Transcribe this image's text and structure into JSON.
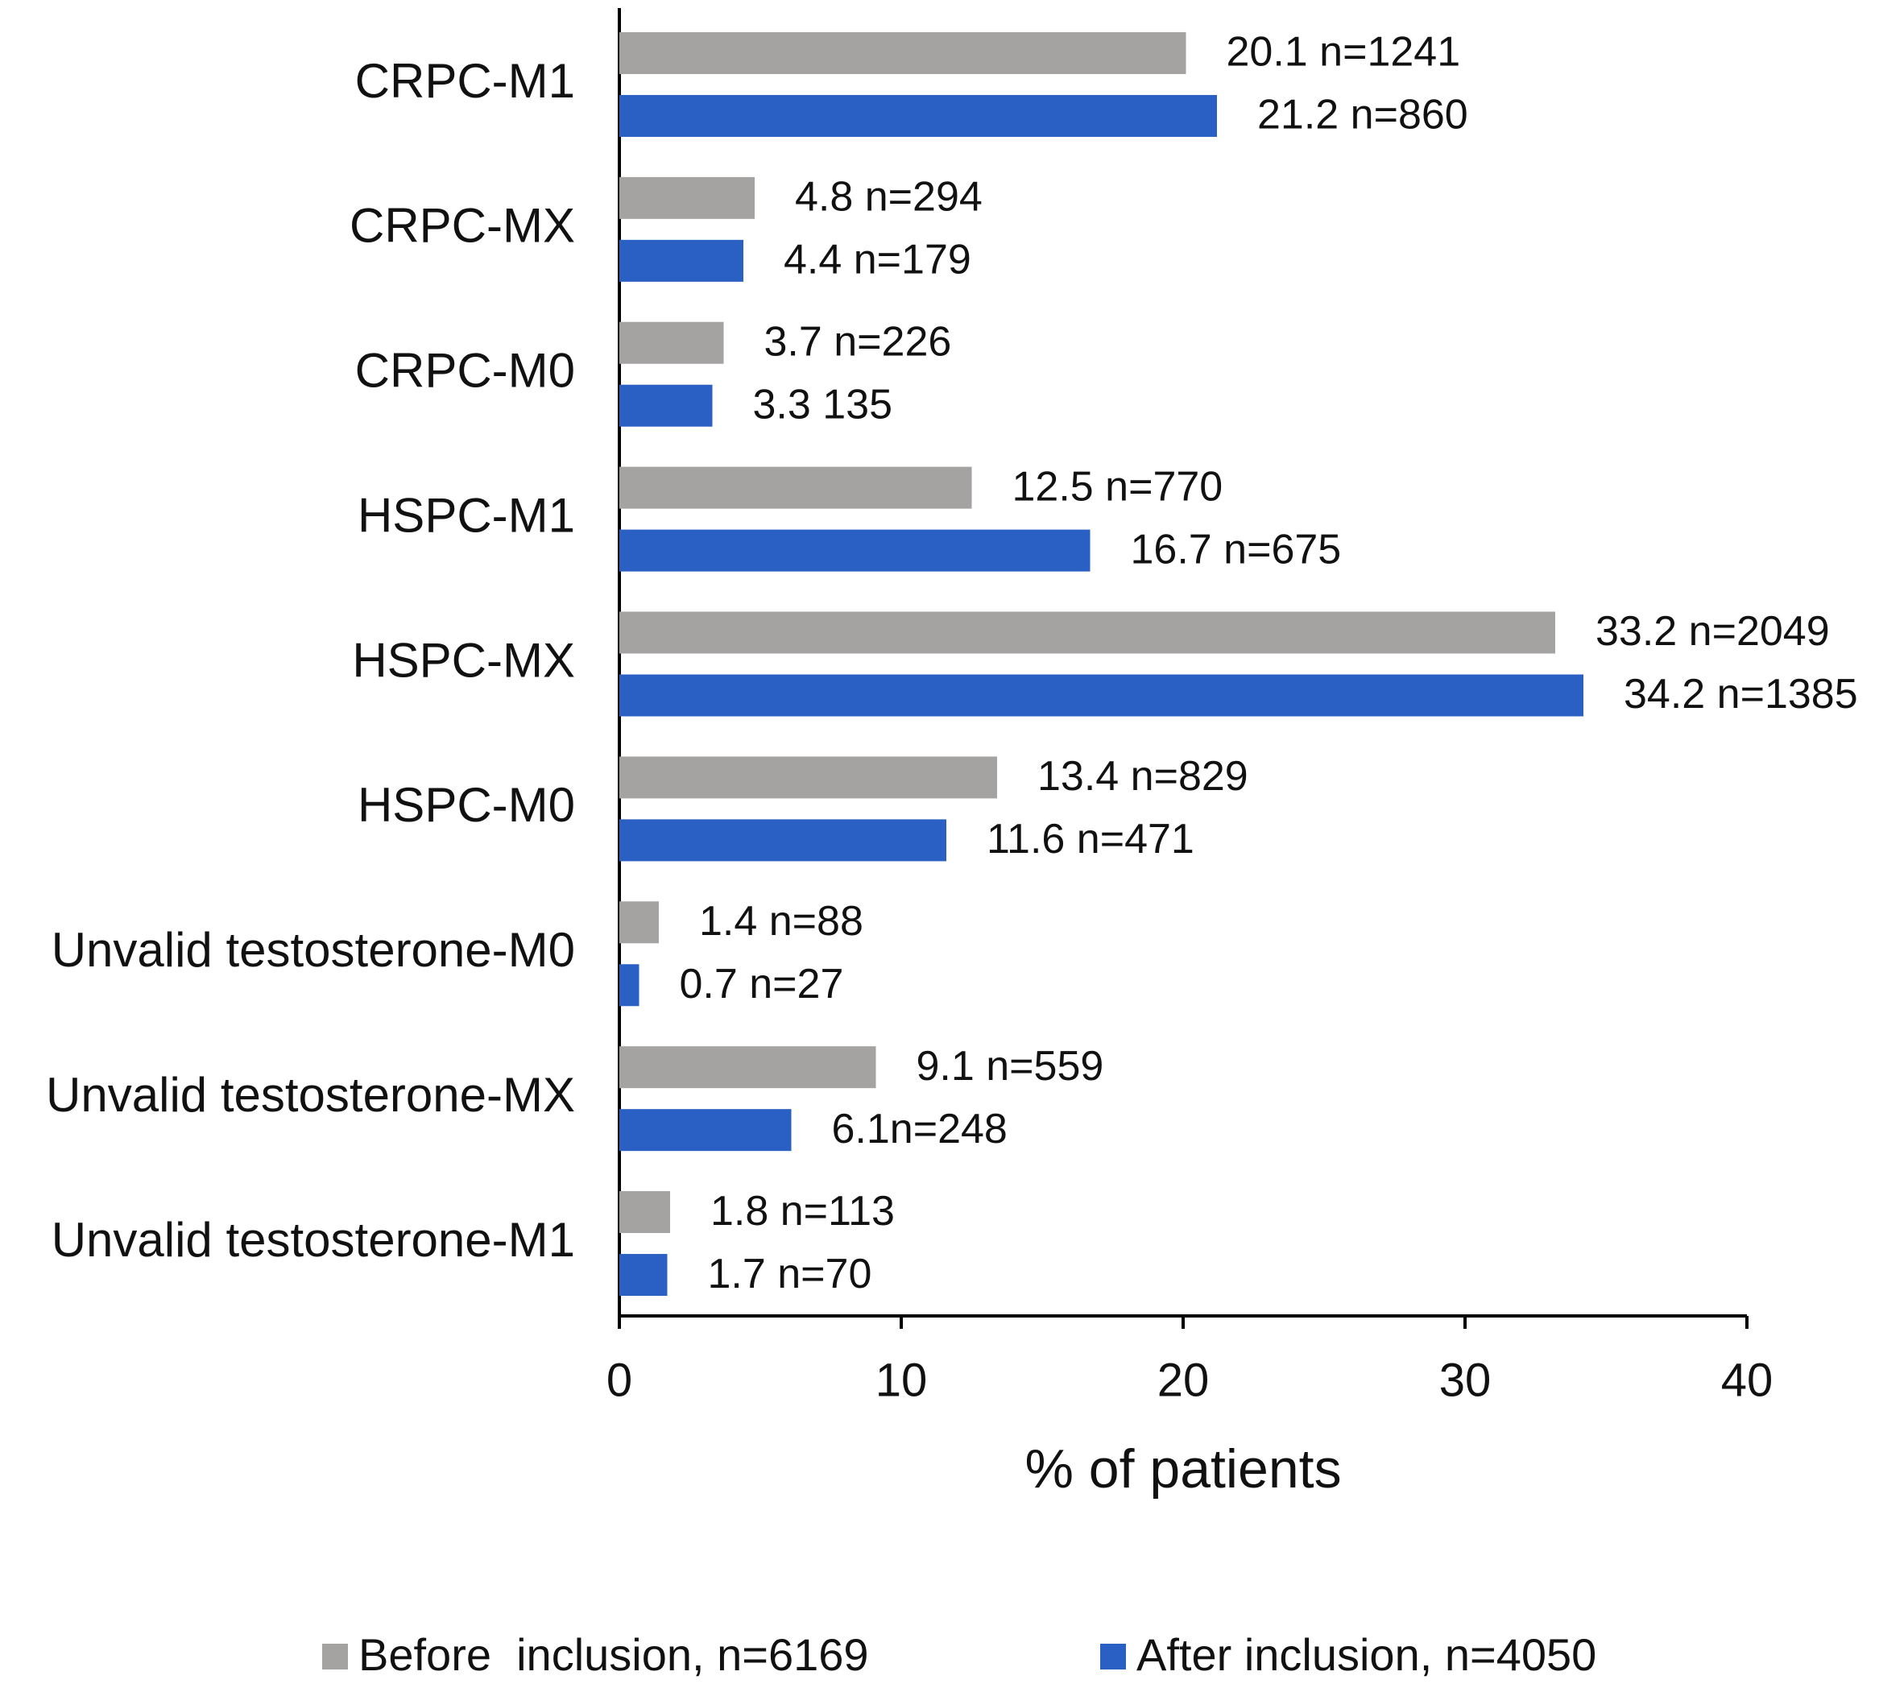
{
  "chart_data": {
    "type": "bar",
    "orientation": "horizontal",
    "x_label": "% of patients",
    "categories": [
      "CRPC-M1",
      "CRPC-MX",
      "CRPC-M0",
      "HSPC-M1",
      "HSPC-MX",
      "HSPC-M0",
      "Unvalid testosterone-M0",
      "Unvalid testosterone-MX",
      "Unvalid testosterone-M1"
    ],
    "series": [
      {
        "name": "Before  inclusion, n=6169",
        "color": "#a5a2a2",
        "values": [
          20.1,
          4.8,
          3.7,
          12.5,
          33.2,
          13.4,
          1.4,
          9.1,
          1.8
        ],
        "value_labels": [
          "20.1 n=1241",
          "4.8 n=294",
          "3.7 n=226",
          "12.5 n=770",
          "33.2 n=2049",
          "13.4 n=829",
          "1.4 n=88",
          "9.1 n=559",
          "1.8 n=113"
        ]
      },
      {
        "name": "After inclusion, n=4050",
        "color": "#2a5fc4",
        "values": [
          21.2,
          4.4,
          3.3,
          16.7,
          34.2,
          11.6,
          0.7,
          6.1,
          1.7
        ],
        "value_labels": [
          "21.2 n=860",
          "4.4 n=179",
          "3.3 135",
          "16.7 n=675",
          "34.2 n=1385",
          "11.6 n=471",
          "0.7 n=27",
          "6.1n=248",
          "1.7 n=70"
        ]
      }
    ],
    "xlim": [
      0,
      40
    ],
    "xticks": [
      0,
      10,
      20,
      30,
      40
    ],
    "grid": false,
    "legend": "bottom"
  }
}
